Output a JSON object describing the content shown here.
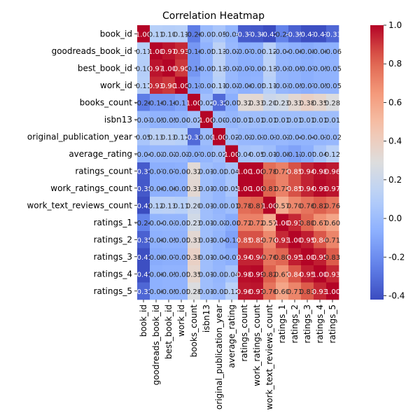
{
  "chart_data": {
    "type": "heatmap",
    "title": "Correlation Heatmap",
    "xlabel": "",
    "ylabel": "",
    "variables": [
      "book_id",
      "goodreads_book_id",
      "best_book_id",
      "work_id",
      "books_count",
      "isbn13",
      "original_publication_year",
      "average_rating",
      "ratings_count",
      "work_ratings_count",
      "work_text_reviews_count",
      "ratings_1",
      "ratings_2",
      "ratings_3",
      "ratings_4",
      "ratings_5"
    ],
    "matrix": [
      [
        1.0,
        0.11,
        0.1,
        0.11,
        -0.26,
        -0.01,
        0.05,
        -0.04,
        -0.37,
        -0.38,
        -0.42,
        -0.24,
        -0.35,
        -0.41,
        -0.41,
        -0.33
      ],
      [
        0.11,
        1.0,
        0.97,
        0.93,
        -0.16,
        -0.05,
        0.13,
        -0.02,
        -0.07,
        -0.06,
        0.12,
        -0.04,
        -0.06,
        -0.08,
        -0.06,
        -0.06
      ],
      [
        0.1,
        0.97,
        1.0,
        0.9,
        -0.16,
        -0.05,
        0.13,
        -0.02,
        -0.07,
        -0.06,
        0.13,
        -0.03,
        -0.05,
        -0.07,
        -0.05,
        -0.05
      ],
      [
        0.11,
        0.93,
        0.9,
        1.0,
        -0.11,
        -0.04,
        0.11,
        -0.02,
        -0.06,
        -0.05,
        0.11,
        -0.03,
        -0.05,
        -0.07,
        -0.05,
        -0.05
      ],
      [
        -0.26,
        -0.16,
        -0.16,
        -0.11,
        1.0,
        0.02,
        -0.32,
        -0.07,
        0.32,
        0.33,
        0.2,
        0.23,
        0.33,
        0.38,
        0.35,
        0.28
      ],
      [
        -0.01,
        -0.05,
        -0.05,
        -0.04,
        0.02,
        1.0,
        -0.0,
        -0.03,
        0.01,
        0.01,
        0.01,
        0.01,
        0.01,
        0.01,
        0.01,
        0.01
      ],
      [
        0.05,
        0.13,
        0.13,
        0.11,
        -0.32,
        -0.0,
        1.0,
        0.02,
        -0.02,
        -0.03,
        -0.03,
        -0.02,
        -0.04,
        -0.04,
        -0.03,
        -0.02
      ],
      [
        -0.04,
        -0.02,
        -0.02,
        -0.02,
        -0.07,
        -0.03,
        0.02,
        1.0,
        0.04,
        0.05,
        0.01,
        -0.08,
        -0.12,
        -0.07,
        0.04,
        0.12
      ],
      [
        -0.37,
        -0.07,
        -0.07,
        -0.06,
        0.32,
        0.01,
        -0.02,
        0.04,
        1.0,
        1.0,
        0.78,
        0.72,
        0.85,
        0.94,
        0.98,
        0.96
      ],
      [
        -0.38,
        -0.06,
        -0.06,
        -0.05,
        0.33,
        0.01,
        -0.03,
        0.05,
        1.0,
        1.0,
        0.81,
        0.72,
        0.85,
        0.94,
        0.99,
        0.97
      ],
      [
        -0.42,
        0.12,
        0.13,
        0.11,
        0.2,
        0.01,
        -0.03,
        0.01,
        0.78,
        0.81,
        1.0,
        0.57,
        0.7,
        0.76,
        0.82,
        0.76
      ],
      [
        -0.24,
        -0.04,
        -0.03,
        -0.03,
        0.23,
        0.01,
        -0.02,
        -0.08,
        0.72,
        0.72,
        0.57,
        1.0,
        0.93,
        0.8,
        0.67,
        0.6
      ],
      [
        -0.35,
        -0.06,
        -0.05,
        -0.05,
        0.33,
        0.01,
        -0.04,
        -0.12,
        0.85,
        0.85,
        0.7,
        0.93,
        1.0,
        0.95,
        0.84,
        0.71
      ],
      [
        -0.41,
        -0.08,
        -0.07,
        -0.07,
        0.38,
        0.01,
        -0.04,
        -0.07,
        0.94,
        0.94,
        0.76,
        0.8,
        0.95,
        1.0,
        0.95,
        0.83
      ],
      [
        -0.41,
        -0.06,
        -0.05,
        -0.05,
        0.35,
        0.01,
        -0.03,
        0.04,
        0.98,
        0.99,
        0.82,
        0.67,
        0.84,
        0.95,
        1.0,
        0.93
      ],
      [
        -0.33,
        -0.06,
        -0.05,
        -0.05,
        0.28,
        0.01,
        -0.02,
        0.12,
        0.96,
        0.97,
        0.76,
        0.6,
        0.71,
        0.83,
        0.93,
        1.0
      ]
    ],
    "value_format": "0.00",
    "colorbar": {
      "cmap": "coolwarm",
      "range": [
        -0.42,
        1.0
      ],
      "ticks": [
        "1.0",
        "0.8",
        "0.6",
        "0.4",
        "0.2",
        "0.0",
        "-0.2",
        "-0.4"
      ],
      "tick_values": [
        1.0,
        0.8,
        0.6,
        0.4,
        0.2,
        0.0,
        -0.2,
        -0.4
      ]
    },
    "grid": false,
    "legend": "colorbar-right"
  }
}
